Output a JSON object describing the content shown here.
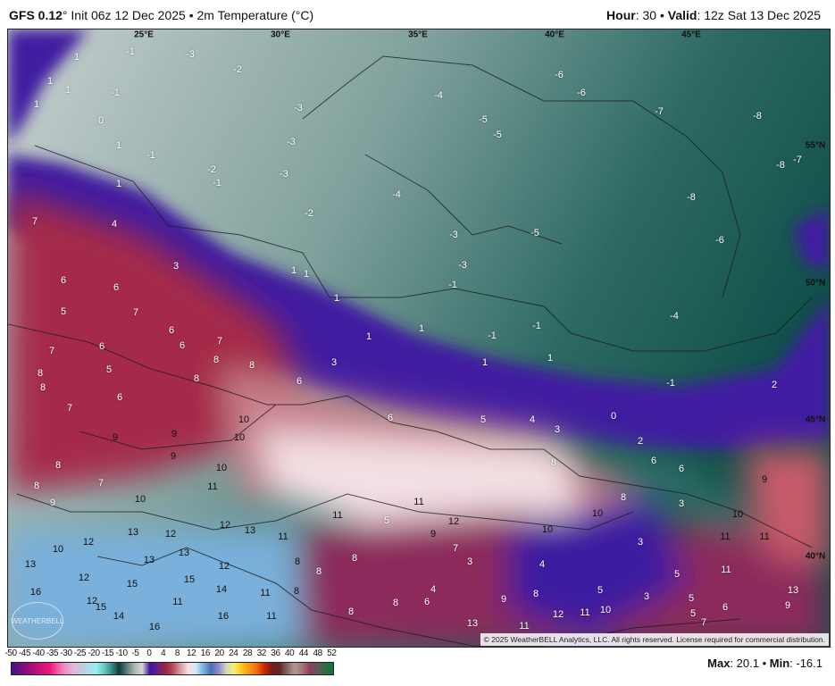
{
  "header": {
    "model": "GFS 0.12",
    "model_suffix": "° Init 06z 12 Dec 2025 • 2m Temperature (°C)",
    "hour_label": "Hour",
    "hour": ": 30 • ",
    "valid_label": "Valid",
    "valid": ": 12z Sat 13 Dec 2025"
  },
  "map": {
    "longitudes": [
      "25°E",
      "30°E",
      "35°E",
      "40°E",
      "45°E"
    ],
    "latitudes": [
      "55°N",
      "50°N",
      "45°N",
      "40°N"
    ],
    "temperature_labels": [
      "1",
      "-1",
      "-3",
      "-2",
      "1",
      "1",
      "1",
      "0",
      "-1",
      "-3",
      "-4",
      "-5",
      "-5",
      "-6",
      "-6",
      "-7",
      "-8",
      "1",
      "-1",
      "-2",
      "-1",
      "-3",
      "-3",
      "-2",
      "-4",
      "1",
      "7",
      "4",
      "-3",
      "-5",
      "-3",
      "-1",
      "-8",
      "-6",
      "-8",
      "-7",
      "3",
      "6",
      "6",
      "1",
      "1",
      "1",
      "1",
      "1",
      "-1",
      "-1",
      "-4",
      "5",
      "7",
      "6",
      "7",
      "6",
      "6",
      "7",
      "5",
      "8",
      "8",
      "8",
      "8",
      "8",
      "3",
      "6",
      "1",
      "1",
      "-1",
      "2",
      "6",
      "7",
      "6",
      "5",
      "4",
      "3",
      "0",
      "2",
      "9",
      "9",
      "10",
      "10",
      "9",
      "10",
      "8",
      "6",
      "6",
      "8",
      "9",
      "8",
      "7",
      "11",
      "10",
      "9",
      "11",
      "11",
      "8",
      "3",
      "10",
      "10",
      "5",
      "12",
      "12",
      "13",
      "11",
      "13",
      "12",
      "10",
      "12",
      "10",
      "9",
      "7",
      "3",
      "11",
      "11",
      "8",
      "3",
      "4",
      "13",
      "13",
      "8",
      "8",
      "12",
      "13",
      "11",
      "5",
      "12",
      "15",
      "15",
      "14",
      "11",
      "8",
      "4",
      "6",
      "9",
      "8",
      "5",
      "3",
      "5",
      "13",
      "9",
      "6",
      "16",
      "12",
      "15",
      "14",
      "11",
      "8",
      "8",
      "12",
      "11",
      "10",
      "5",
      "13",
      "11",
      "16",
      "16",
      "11",
      "7"
    ],
    "copyright": "© 2025 WeatherBELL Analytics, LLC. All rights reserved. License required for commercial distribution.",
    "logo": "WEATHERBELL"
  },
  "colorbar": {
    "ticks": [
      "-50",
      "-45",
      "-40",
      "-35",
      "-30",
      "-25",
      "-20",
      "-15",
      "-10",
      "-5",
      "0",
      "4",
      "8",
      "12",
      "16",
      "20",
      "24",
      "28",
      "32",
      "36",
      "40",
      "44",
      "48",
      "52"
    ],
    "colors": [
      "#4b0f8c",
      "#6a0f86",
      "#8e0c7a",
      "#b3107a",
      "#d8127c",
      "#f0157e",
      "#f45aa6",
      "#f090c4",
      "#e2b6d4",
      "#c8c8dc",
      "#b0dbe8",
      "#98f0f0",
      "#6bc8c4",
      "#3a8c88",
      "#0d3c3a",
      "#5c7c78",
      "#a8b4b2",
      "#d6d6d6",
      "#3d13a0",
      "#6a1f8a",
      "#9a2440",
      "#b84a56",
      "#d99aa4",
      "#f2e0e4",
      "#d8e8f2",
      "#78b4e0",
      "#4e6eb8",
      "#8c8ccc",
      "#d4d4c0",
      "#f8f070",
      "#f8c818",
      "#f89818",
      "#f06a0a",
      "#c82a0a",
      "#7a1a1a",
      "#5c2a2a",
      "#8c6464",
      "#b09898",
      "#a07474",
      "#8c3c5c",
      "#5c5c5c",
      "#2e6c3c",
      "#0c7a3a"
    ]
  },
  "stats": {
    "max_label": "Max",
    "max": ": 20.1 • ",
    "min_label": "Min",
    "min": ": -16.1"
  }
}
